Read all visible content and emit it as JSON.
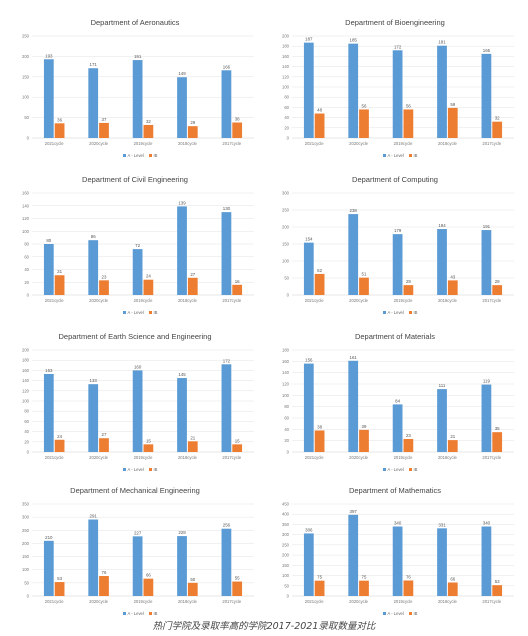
{
  "caption": "热门学院及录取率高的学院2017-2021录取数量对比",
  "series_colors": {
    "A-Level": "#5b9bd5",
    "IB": "#ed7d31"
  },
  "chart_data": [
    {
      "type": "bar",
      "title": "Department of Aeronautics",
      "categories": [
        "2021cycle",
        "2020cycle",
        "2019cycle",
        "2018cycle",
        "2017cycle"
      ],
      "series": [
        {
          "name": "A - Level",
          "values": [
            193,
            171,
            191,
            149,
            166
          ]
        },
        {
          "name": "IB",
          "values": [
            36,
            37,
            32,
            29,
            38
          ]
        }
      ],
      "ylim": [
        0,
        250
      ],
      "yticks": [
        0,
        50,
        100,
        150,
        200,
        250
      ],
      "legend": "bottom"
    },
    {
      "type": "bar",
      "title": "Department of Bioengineering",
      "categories": [
        "2021cycle",
        "2020cycle",
        "2019cycle",
        "2018cycle",
        "2017cycle"
      ],
      "series": [
        {
          "name": "A - Level",
          "values": [
            187,
            185,
            172,
            181,
            165
          ]
        },
        {
          "name": "IB",
          "values": [
            48,
            56,
            56,
            59,
            32
          ]
        }
      ],
      "ylim": [
        0,
        200
      ],
      "yticks": [
        0,
        20,
        40,
        60,
        80,
        100,
        120,
        140,
        160,
        180,
        200
      ],
      "legend": "bottom"
    },
    {
      "type": "bar",
      "title": "Department of Civil Engineering",
      "categories": [
        "2021cycle",
        "2020cycle",
        "2019cycle",
        "2018cycle",
        "2017cycle"
      ],
      "series": [
        {
          "name": "A - Level",
          "values": [
            80,
            86,
            72,
            139,
            130
          ]
        },
        {
          "name": "IB",
          "values": [
            31,
            23,
            24,
            27,
            16
          ]
        }
      ],
      "ylim": [
        0,
        160
      ],
      "yticks": [
        0,
        20,
        40,
        60,
        80,
        100,
        120,
        140,
        160
      ],
      "legend": "bottom"
    },
    {
      "type": "bar",
      "title": "Department of Computing",
      "categories": [
        "2021cycle",
        "2020cycle",
        "2019cycle",
        "2018cycle",
        "2017cycle"
      ],
      "series": [
        {
          "name": "A - Level",
          "values": [
            154,
            238,
            179,
            194,
            191
          ]
        },
        {
          "name": "IB",
          "values": [
            62,
            51,
            29,
            43,
            29
          ]
        }
      ],
      "ylim": [
        0,
        300
      ],
      "yticks": [
        0,
        50,
        100,
        150,
        200,
        250,
        300
      ],
      "legend": "bottom"
    },
    {
      "type": "bar",
      "title": "Department of Earth Science and Engineering",
      "categories": [
        "2021cycle",
        "2020cycle",
        "2019cycle",
        "2018cycle",
        "2017cycle"
      ],
      "series": [
        {
          "name": "A - Level",
          "values": [
            153,
            133,
            160,
            145,
            172
          ]
        },
        {
          "name": "IB",
          "values": [
            24,
            27,
            15,
            21,
            15
          ]
        }
      ],
      "ylim": [
        0,
        200
      ],
      "yticks": [
        0,
        20,
        40,
        60,
        80,
        100,
        120,
        140,
        160,
        180,
        200
      ],
      "legend": "bottom"
    },
    {
      "type": "bar",
      "title": "Department of Materials",
      "categories": [
        "2021cycle",
        "2020cycle",
        "2019cycle",
        "2018cycle",
        "2017cycle"
      ],
      "series": [
        {
          "name": "A - Level",
          "values": [
            156,
            161,
            84,
            111,
            119
          ]
        },
        {
          "name": "IB",
          "values": [
            38,
            39,
            23,
            21,
            35
          ]
        }
      ],
      "ylim": [
        0,
        180
      ],
      "yticks": [
        0,
        20,
        40,
        60,
        80,
        100,
        120,
        140,
        160,
        180
      ],
      "legend": "bottom"
    },
    {
      "type": "bar",
      "title": "Department of Mechanical Engineering",
      "categories": [
        "2021cycle",
        "2020cycle",
        "2019cycle",
        "2018cycle",
        "2017cycle"
      ],
      "series": [
        {
          "name": "A - Level",
          "values": [
            210,
            291,
            227,
            228,
            256
          ]
        },
        {
          "name": "IB",
          "values": [
            53,
            76,
            66,
            50,
            55
          ]
        }
      ],
      "ylim": [
        0,
        350
      ],
      "yticks": [
        0,
        50,
        100,
        150,
        200,
        250,
        300,
        350
      ],
      "legend": "bottom"
    },
    {
      "type": "bar",
      "title": "Department of Mathematics",
      "categories": [
        "2021cycle",
        "2020cycle",
        "2019cycle",
        "2018cycle",
        "2017cycle"
      ],
      "series": [
        {
          "name": "A - Level",
          "values": [
            306,
            397,
            340,
            331,
            340
          ]
        },
        {
          "name": "IB",
          "values": [
            75,
            75,
            76,
            66,
            53
          ]
        }
      ],
      "ylim": [
        0,
        450
      ],
      "yticks": [
        0,
        50,
        100,
        150,
        200,
        250,
        300,
        350,
        400,
        450
      ],
      "legend": "bottom"
    }
  ]
}
